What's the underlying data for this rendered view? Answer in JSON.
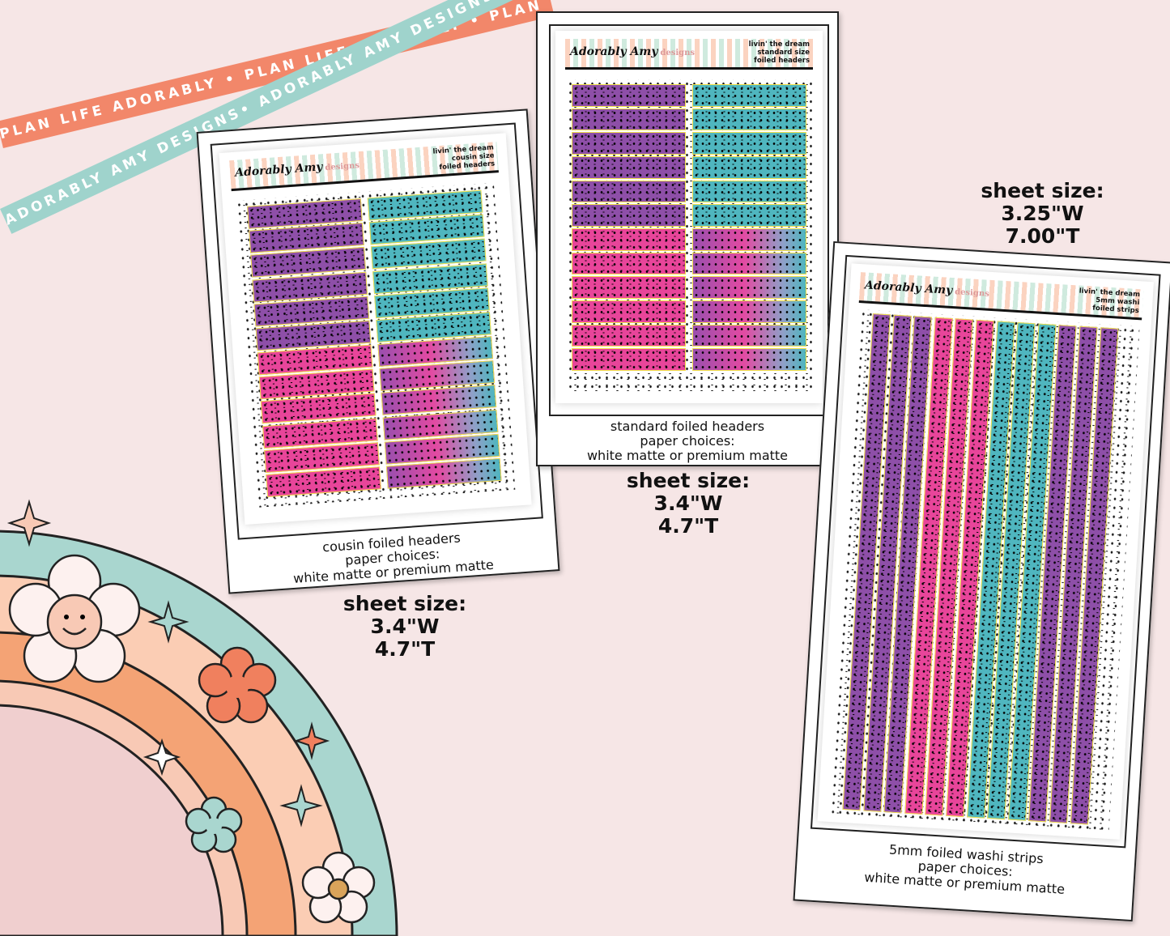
{
  "ribbons": {
    "coral": {
      "text": "PLAN LIFE ADORABLY • PLAN LIFE ADORABLY • PLAN LIFE ADORABLY",
      "color": "#f2876a"
    },
    "teal": {
      "text": "ADORABLY AMY DESIGNS• ADORABLY AMY DESIGNS• ADORABLY AMY DESIGNS",
      "color": "#9fd3cc"
    }
  },
  "brand": {
    "logo": "Adorably Amy",
    "logo_suffix": "designs"
  },
  "cards": [
    {
      "header": [
        "livin' the dream",
        "cousin size",
        "foiled headers"
      ],
      "caption": [
        "cousin foiled headers",
        "paper choices:",
        "white matte or premium matte"
      ],
      "size": [
        "sheet size:",
        "3.4\"W",
        "4.7\"T"
      ]
    },
    {
      "header": [
        "livin' the dream",
        "standard size",
        "foiled headers"
      ],
      "caption": [
        "standard foiled headers",
        "paper choices:",
        "white matte or premium matte"
      ],
      "size": [
        "sheet size:",
        "3.4\"W",
        "4.7\"T"
      ]
    },
    {
      "header": [
        "livin' the dream",
        "5mm washi",
        "foiled strips"
      ],
      "caption": [
        "5mm foiled washi strips",
        "paper choices:",
        "white matte or premium matte"
      ],
      "size": [
        "sheet size:",
        "3.25\"W",
        "7.00\"T"
      ]
    }
  ],
  "colors": {
    "purple": "#8e4fa8",
    "pink": "#e8459a",
    "teal": "#4fb6bf",
    "foil": "#f3e24a",
    "background": "#f6e6e6"
  }
}
